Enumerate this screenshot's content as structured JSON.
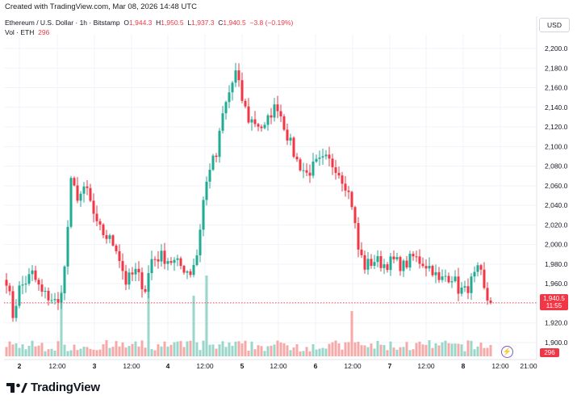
{
  "caption": "Created with TradingView.com, Mar 08, 2026 14:48 UTC",
  "legend": {
    "symbol": "Ethereum / U.S. Dollar · 1h · Bitstamp",
    "o_label": "O",
    "o": "1,944.3",
    "h_label": "H",
    "h": "1,950.5",
    "l_label": "L",
    "l": "1,937.3",
    "c_label": "C",
    "c": "1,940.5",
    "change": "−3.8 (−0.19%)",
    "vol_label": "Vol · ETH",
    "vol": "296"
  },
  "currency_button": "USD",
  "price_tag": {
    "price": "1,940.5",
    "countdown": "11:55"
  },
  "volume_tag": "296",
  "brand": "TradingView",
  "colors": {
    "up": "#22ab94",
    "down": "#f23645",
    "up_vol": "#9bd6cb",
    "down_vol": "#f7a9a7",
    "grid": "#f0f3fa"
  },
  "chart_data": {
    "type": "candlestick",
    "y_axis_labels": [
      "2,200.0",
      "2,180.0",
      "2,160.0",
      "2,140.0",
      "2,120.0",
      "2,100.0",
      "2,080.0",
      "2,060.0",
      "2,040.0",
      "2,020.0",
      "2,000.0",
      "1,980.0",
      "1,960.0",
      "1,940.0",
      "1,920.0",
      "1,900.0"
    ],
    "ylim": [
      1890,
      2210
    ],
    "x_axis_labels": [
      "2",
      "12:00",
      "3",
      "12:00",
      "4",
      "12:00",
      "5",
      "12:00",
      "6",
      "12:00",
      "7",
      "12:00",
      "8",
      "12:00",
      "21:00"
    ],
    "last_price": 1940.5,
    "anchors": [
      [
        0,
        1965
      ],
      [
        2,
        1928
      ],
      [
        4,
        1955
      ],
      [
        8,
        1970
      ],
      [
        11,
        1950
      ],
      [
        14,
        1945
      ],
      [
        16,
        1938
      ],
      [
        18,
        1975
      ],
      [
        20,
        2062
      ],
      [
        22,
        2050
      ],
      [
        25,
        2055
      ],
      [
        28,
        2018
      ],
      [
        31,
        2008
      ],
      [
        34,
        1998
      ],
      [
        37,
        1962
      ],
      [
        40,
        1972
      ],
      [
        43,
        1955
      ],
      [
        45,
        1985
      ],
      [
        48,
        1988
      ],
      [
        52,
        1982
      ],
      [
        55,
        1976
      ],
      [
        57,
        1972
      ],
      [
        59,
        1990
      ],
      [
        61,
        2045
      ],
      [
        63,
        2080
      ],
      [
        65,
        2090
      ],
      [
        67,
        2132
      ],
      [
        69,
        2155
      ],
      [
        71,
        2175
      ],
      [
        73,
        2148
      ],
      [
        75,
        2128
      ],
      [
        77,
        2125
      ],
      [
        80,
        2118
      ],
      [
        82,
        2135
      ],
      [
        84,
        2142
      ],
      [
        86,
        2122
      ],
      [
        88,
        2102
      ],
      [
        90,
        2085
      ],
      [
        93,
        2072
      ],
      [
        96,
        2082
      ],
      [
        99,
        2086
      ],
      [
        102,
        2080
      ],
      [
        105,
        2062
      ],
      [
        107,
        2042
      ],
      [
        109,
        1995
      ],
      [
        111,
        1978
      ],
      [
        114,
        1984
      ],
      [
        117,
        1980
      ],
      [
        120,
        1983
      ],
      [
        123,
        1978
      ],
      [
        126,
        1987
      ],
      [
        129,
        1982
      ],
      [
        132,
        1975
      ],
      [
        134,
        1961
      ],
      [
        136,
        1968
      ],
      [
        138,
        1968
      ],
      [
        140,
        1955
      ],
      [
        142,
        1952
      ],
      [
        144,
        1962
      ],
      [
        146,
        1972
      ],
      [
        147,
        1968
      ],
      [
        148,
        1952
      ],
      [
        149,
        1944
      ],
      [
        150,
        1941
      ]
    ],
    "volume_peaks": [
      [
        17,
        80
      ],
      [
        44,
        88
      ],
      [
        58,
        75
      ],
      [
        62,
        100
      ],
      [
        107,
        56
      ]
    ]
  }
}
